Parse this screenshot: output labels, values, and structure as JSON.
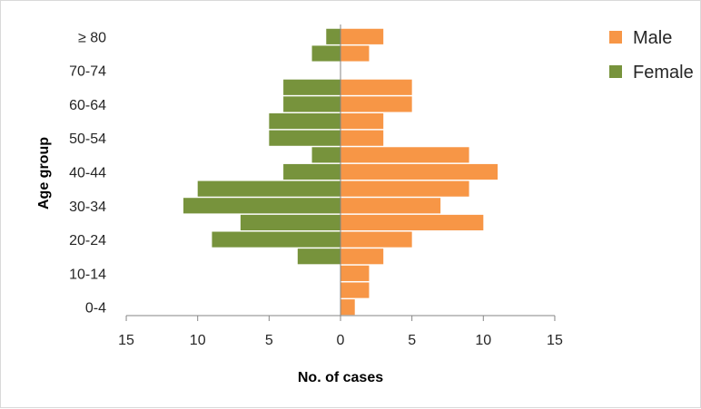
{
  "chart_data": {
    "type": "bar",
    "orientation": "horizontal",
    "subtype": "population-pyramid",
    "categories": [
      "0-4",
      "5-9",
      "10-14",
      "15-19",
      "20-24",
      "25-29",
      "30-34",
      "35-39",
      "40-44",
      "45-49",
      "50-54",
      "55-59",
      "60-64",
      "65-69",
      "70-74",
      "75-79",
      "≥ 80"
    ],
    "category_labels_shown": [
      "0-4",
      "10-14",
      "20-24",
      "30-34",
      "40-44",
      "50-54",
      "60-64",
      "70-74",
      "≥ 80"
    ],
    "series": [
      {
        "name": "Male",
        "color": "#f79646",
        "side": "right",
        "values": [
          1,
          2,
          2,
          3,
          5,
          10,
          7,
          9,
          11,
          9,
          3,
          3,
          5,
          5,
          0,
          2,
          3
        ]
      },
      {
        "name": "Female",
        "color": "#77933c",
        "side": "left",
        "values": [
          0,
          0,
          0,
          3,
          9,
          7,
          11,
          10,
          4,
          2,
          5,
          5,
          4,
          4,
          0,
          2,
          1
        ]
      }
    ],
    "xlabel": "No. of cases",
    "ylabel": "Age group",
    "xlim": [
      -15,
      15
    ],
    "xticks": [
      -15,
      -10,
      -5,
      0,
      5,
      10,
      15
    ],
    "xtick_labels": [
      "15",
      "10",
      "5",
      "0",
      "5",
      "10",
      "15"
    ],
    "grid": false,
    "legend_position": "top-right"
  }
}
